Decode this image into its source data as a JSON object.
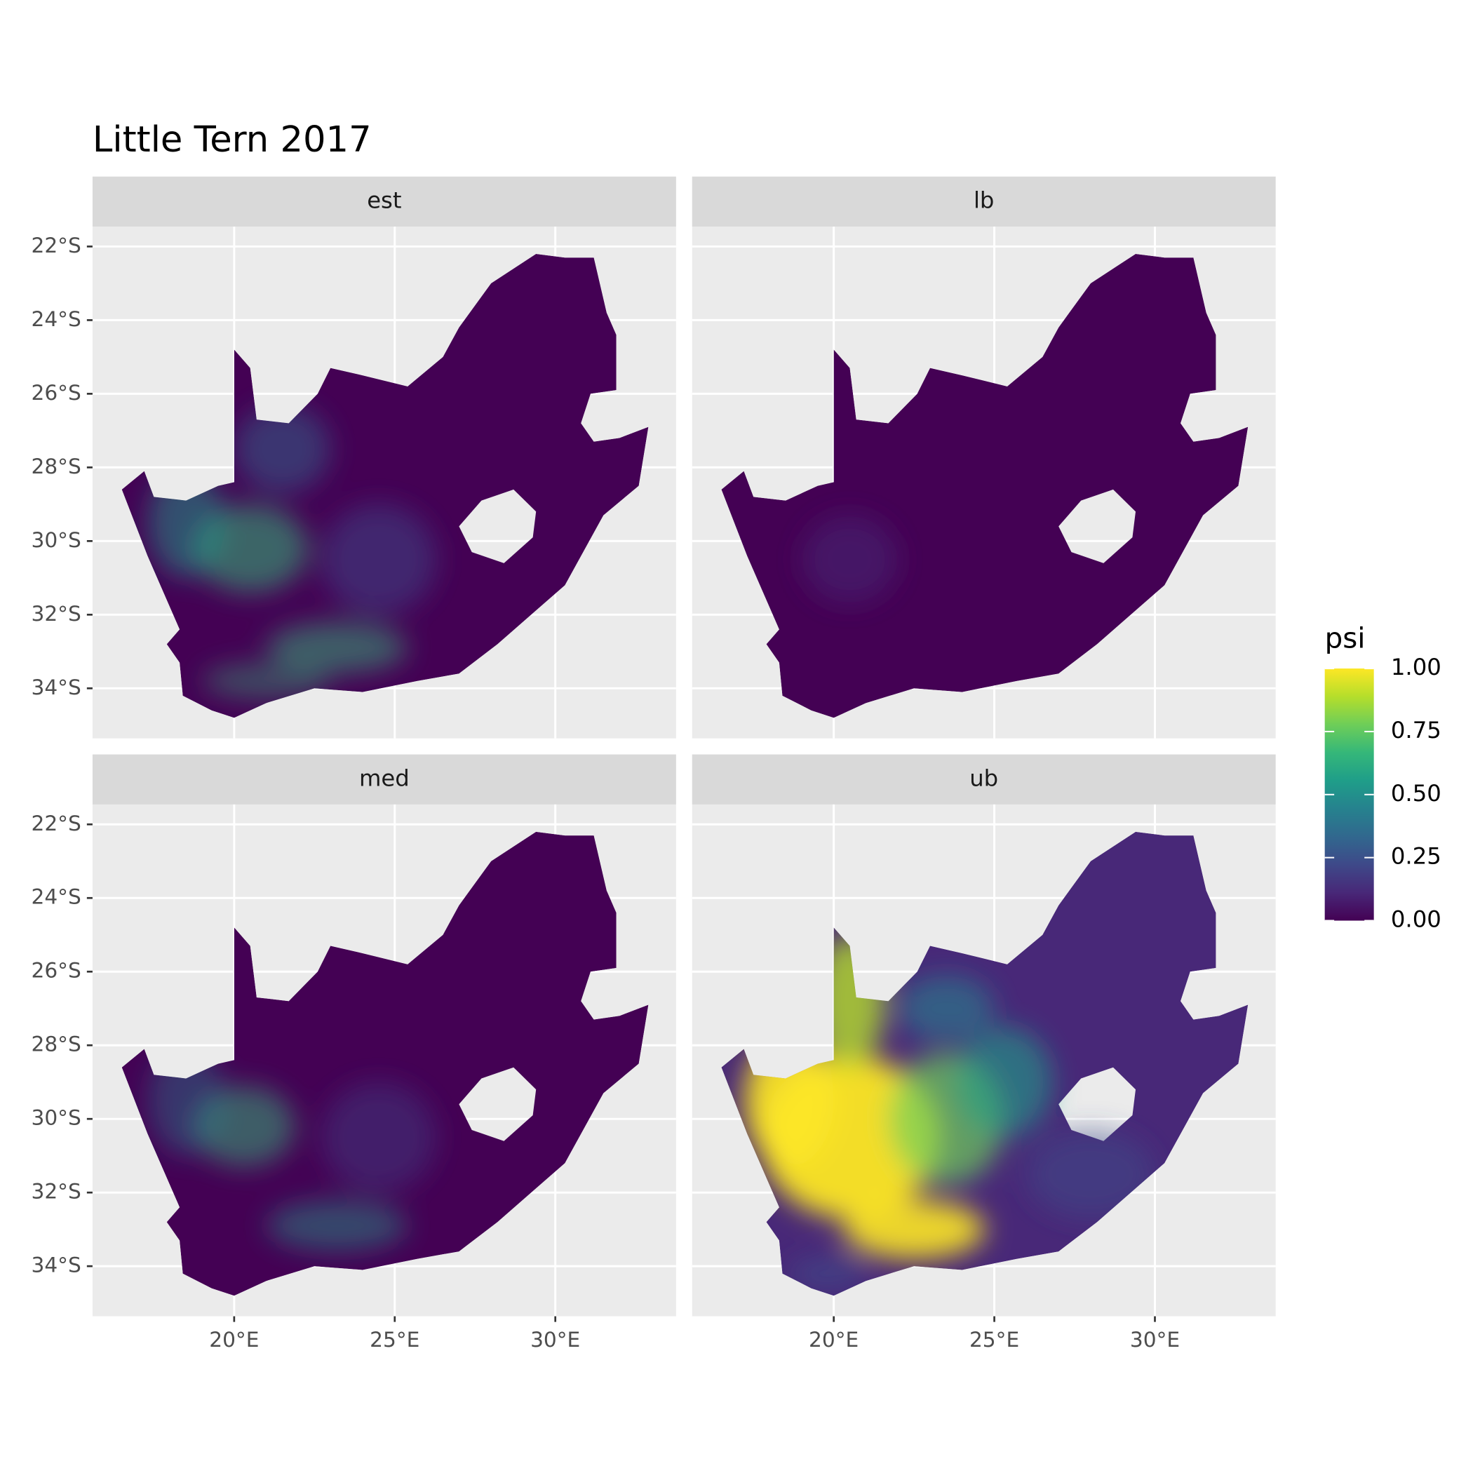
{
  "chart_data": {
    "type": "raster-map",
    "title": "Little Tern 2017",
    "facets": [
      "est",
      "lb",
      "med",
      "ub"
    ],
    "xlim": [
      15.59,
      33.76
    ],
    "ylim": [
      -35.36,
      -21.46
    ],
    "xticks": [
      {
        "value": 20,
        "label": "20°E"
      },
      {
        "value": 25,
        "label": "25°E"
      },
      {
        "value": 30,
        "label": "30°E"
      }
    ],
    "yticks": [
      {
        "value": -22,
        "label": "22°S"
      },
      {
        "value": -24,
        "label": "24°S"
      },
      {
        "value": -26,
        "label": "26°S"
      },
      {
        "value": -28,
        "label": "28°S"
      },
      {
        "value": -30,
        "label": "30°S"
      },
      {
        "value": -32,
        "label": "32°S"
      },
      {
        "value": -34,
        "label": "34°S"
      }
    ],
    "grid": true,
    "colormap": "viridis",
    "legend": {
      "title": "psi",
      "lim": [
        0,
        1
      ],
      "ticks": [
        {
          "value": 1,
          "label": "1.00"
        },
        {
          "value": 0.75,
          "label": "0.75"
        },
        {
          "value": 0.5,
          "label": "0.50"
        },
        {
          "value": 0.25,
          "label": "0.25"
        },
        {
          "value": 0,
          "label": "0.00"
        }
      ]
    }
  }
}
